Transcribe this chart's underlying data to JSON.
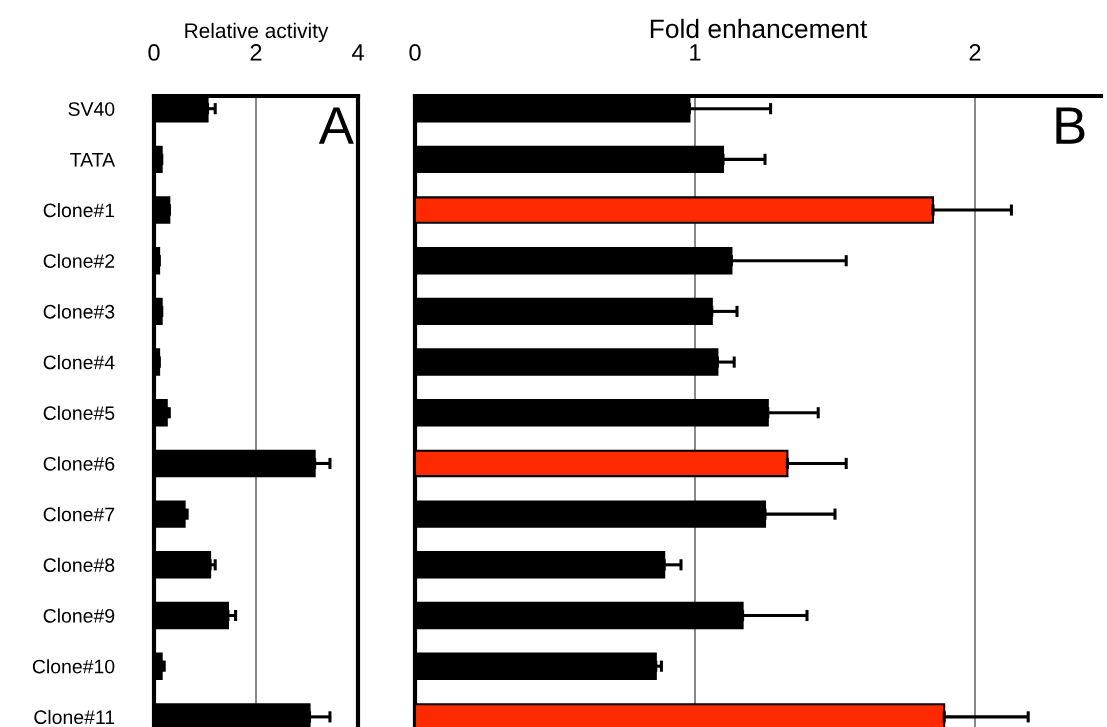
{
  "chart_data": [
    {
      "type": "bar",
      "orientation": "horizontal",
      "xlabel": "Relative activity",
      "categories": [
        "SV40",
        "TATA",
        "Clone#1",
        "Clone#2",
        "Clone#3",
        "Clone#4",
        "Clone#5",
        "Clone#6",
        "Clone#7",
        "Clone#8",
        "Clone#9",
        "Clone#10",
        "Clone#11"
      ],
      "values": [
        1.05,
        0.15,
        0.3,
        0.1,
        0.15,
        0.1,
        0.25,
        3.15,
        0.6,
        1.1,
        1.45,
        0.15,
        3.05
      ],
      "errors": [
        [
          1.05,
          1.2
        ],
        [
          0.15,
          0.15
        ],
        [
          0.3,
          0.3
        ],
        [
          0.1,
          0.1
        ],
        [
          0.15,
          0.15
        ],
        [
          0.1,
          0.1
        ],
        [
          0.25,
          0.3
        ],
        [
          3.15,
          3.45
        ],
        [
          0.6,
          0.65
        ],
        [
          1.1,
          1.2
        ],
        [
          1.45,
          1.6
        ],
        [
          0.15,
          0.2
        ],
        [
          3.05,
          3.45
        ]
      ],
      "color": "#000000",
      "xlim": [
        0,
        4
      ],
      "xticks": [
        0,
        2,
        4
      ],
      "grid": "x",
      "annotations": [
        "A"
      ]
    },
    {
      "type": "bar",
      "orientation": "horizontal",
      "xlabel": "Fold enhancement",
      "categories": [
        null,
        null,
        null,
        null,
        null,
        null,
        null,
        null,
        null,
        null,
        null,
        null,
        null
      ],
      "values": [
        0.98,
        1.1,
        1.85,
        1.13,
        1.06,
        1.08,
        1.26,
        1.33,
        1.25,
        0.89,
        1.17,
        0.86,
        1.89
      ],
      "errors": [
        [
          0.98,
          1.27
        ],
        [
          1.1,
          1.25
        ],
        [
          1.85,
          2.13
        ],
        [
          1.13,
          1.54
        ],
        [
          1.06,
          1.15
        ],
        [
          1.08,
          1.14
        ],
        [
          1.26,
          1.44
        ],
        [
          1.33,
          1.54
        ],
        [
          1.25,
          1.5
        ],
        [
          0.89,
          0.95
        ],
        [
          1.17,
          1.4
        ],
        [
          0.86,
          0.88
        ],
        [
          1.89,
          2.19
        ]
      ],
      "colors": [
        "#000000",
        "#000000",
        "#ff2a00",
        "#000000",
        "#000000",
        "#000000",
        "#000000",
        "#ff2a00",
        "#000000",
        "#000000",
        "#000000",
        "#000000",
        "#ff2a00"
      ],
      "xlim": [
        0,
        2.45
      ],
      "xticks": [
        0,
        1,
        2
      ],
      "grid": "x",
      "tick_labels": "x",
      "annotations": [
        "B"
      ]
    }
  ]
}
